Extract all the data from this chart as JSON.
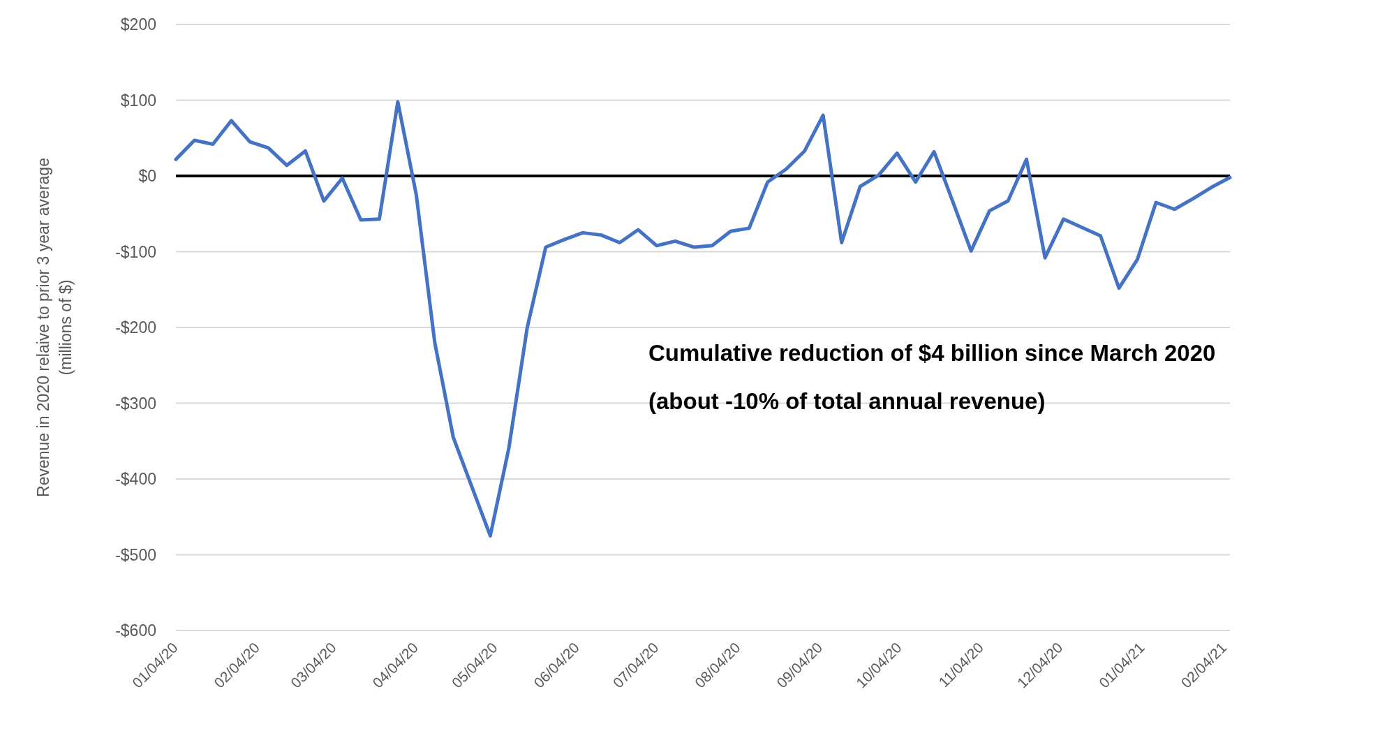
{
  "chart_data": {
    "type": "line",
    "ylabel": "Revenue in 2020 relaive to prior 3  year average\n(millions of $)",
    "x": [
      "2020-01-04",
      "2020-01-11",
      "2020-01-18",
      "2020-01-25",
      "2020-02-01",
      "2020-02-08",
      "2020-02-15",
      "2020-02-22",
      "2020-02-29",
      "2020-03-07",
      "2020-03-14",
      "2020-03-21",
      "2020-03-28",
      "2020-04-04",
      "2020-04-11",
      "2020-04-18",
      "2020-04-25",
      "2020-05-02",
      "2020-05-09",
      "2020-05-16",
      "2020-05-23",
      "2020-05-30",
      "2020-06-06",
      "2020-06-13",
      "2020-06-20",
      "2020-06-27",
      "2020-07-04",
      "2020-07-11",
      "2020-07-18",
      "2020-07-25",
      "2020-08-01",
      "2020-08-08",
      "2020-08-15",
      "2020-08-22",
      "2020-08-29",
      "2020-09-05",
      "2020-09-12",
      "2020-09-19",
      "2020-09-26",
      "2020-10-03",
      "2020-10-10",
      "2020-10-17",
      "2020-10-24",
      "2020-10-31",
      "2020-11-07",
      "2020-11-14",
      "2020-11-21",
      "2020-11-28",
      "2020-12-05",
      "2020-12-12",
      "2020-12-19",
      "2020-12-26",
      "2021-01-02",
      "2021-01-09",
      "2021-01-16",
      "2021-01-23",
      "2021-01-30",
      "2021-02-06"
    ],
    "series": [
      {
        "color": "#4472c4",
        "values": [
          22,
          47,
          42,
          73,
          45,
          37,
          14,
          33,
          -33,
          -3,
          -58,
          -57,
          98,
          -25,
          -220,
          -345,
          -410,
          -475,
          -360,
          -200,
          -94,
          -84,
          -75,
          -78,
          -88,
          -71,
          -92,
          -86,
          -94,
          -92,
          -73,
          -69,
          -8,
          9,
          33,
          80,
          -88,
          -14,
          1,
          30,
          -8,
          32,
          -33,
          -99,
          -46,
          -33,
          22,
          -108,
          -57,
          -68,
          -79,
          -148,
          -110,
          -35,
          -44,
          -30,
          -15,
          -2
        ]
      }
    ],
    "xlim": [
      "2020-01-04",
      "2021-02-06"
    ],
    "xticks": [
      {
        "value": "2020-01-04",
        "label": "01/04/20"
      },
      {
        "value": "2020-02-04",
        "label": "02/04/20"
      },
      {
        "value": "2020-03-04",
        "label": "03/04/20"
      },
      {
        "value": "2020-04-04",
        "label": "04/04/20"
      },
      {
        "value": "2020-05-04",
        "label": "05/04/20"
      },
      {
        "value": "2020-06-04",
        "label": "06/04/20"
      },
      {
        "value": "2020-07-04",
        "label": "07/04/20"
      },
      {
        "value": "2020-08-04",
        "label": "08/04/20"
      },
      {
        "value": "2020-09-04",
        "label": "09/04/20"
      },
      {
        "value": "2020-10-04",
        "label": "10/04/20"
      },
      {
        "value": "2020-11-04",
        "label": "11/04/20"
      },
      {
        "value": "2020-12-04",
        "label": "12/04/20"
      },
      {
        "value": "2021-01-04",
        "label": "01/04/21"
      },
      {
        "value": "2021-02-04",
        "label": "02/04/21"
      }
    ],
    "ylim": [
      -600,
      200
    ],
    "yticks": [
      {
        "value": 200,
        "label": "$200"
      },
      {
        "value": 100,
        "label": "$100"
      },
      {
        "value": 0,
        "label": "$0"
      },
      {
        "value": -100,
        "label": "-$100"
      },
      {
        "value": -200,
        "label": "-$200"
      },
      {
        "value": -300,
        "label": "-$300"
      },
      {
        "value": -400,
        "label": "-$400"
      },
      {
        "value": -500,
        "label": "-$500"
      },
      {
        "value": -600,
        "label": "-$600"
      }
    ],
    "grid": "y",
    "marker": "none",
    "line_style": "solid",
    "ref_lines": [
      {
        "axis": "y",
        "value": 0,
        "color": "#000000"
      }
    ],
    "annotations": [
      "Cumulative reduction of $4 billion since March 2020\n(about -10% of total annual revenue)"
    ]
  }
}
